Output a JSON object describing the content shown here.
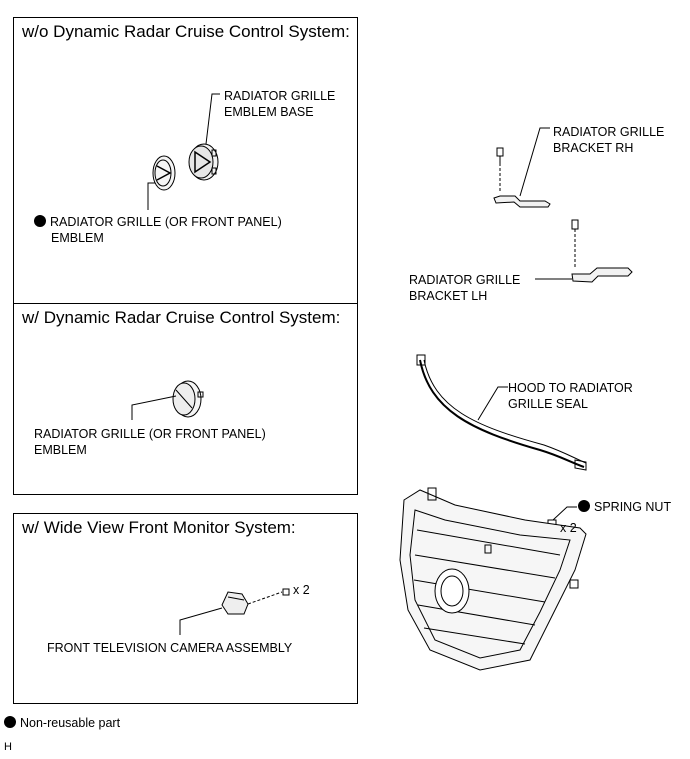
{
  "panels": {
    "wo_radar": {
      "title": "w/o Dynamic Radar Cruise Control System:",
      "emblem_base_label": [
        "RADIATOR GRILLE",
        "EMBLEM BASE"
      ],
      "emblem_label": [
        "RADIATOR GRILLE (OR FRONT PANEL)",
        "EMBLEM"
      ]
    },
    "w_radar": {
      "title": "w/ Dynamic Radar Cruise Control System:",
      "emblem_label": [
        "RADIATOR GRILLE (OR FRONT PANEL)",
        "EMBLEM"
      ]
    },
    "wide_view": {
      "title": "w/ Wide View Front Monitor System:",
      "qty": "x 2",
      "camera_label": "FRONT TELEVISION CAMERA ASSEMBLY"
    }
  },
  "right": {
    "bracket_rh": [
      "RADIATOR GRILLE",
      "BRACKET RH"
    ],
    "bracket_lh": [
      "RADIATOR GRILLE",
      "BRACKET LH"
    ],
    "seal": [
      "HOOD TO RADIATOR",
      "GRILLE SEAL"
    ],
    "spring_nut": "SPRING NUT",
    "spring_nut_qty": "x 2"
  },
  "legend": {
    "text": "Non-reusable part"
  },
  "figure_id": "H"
}
